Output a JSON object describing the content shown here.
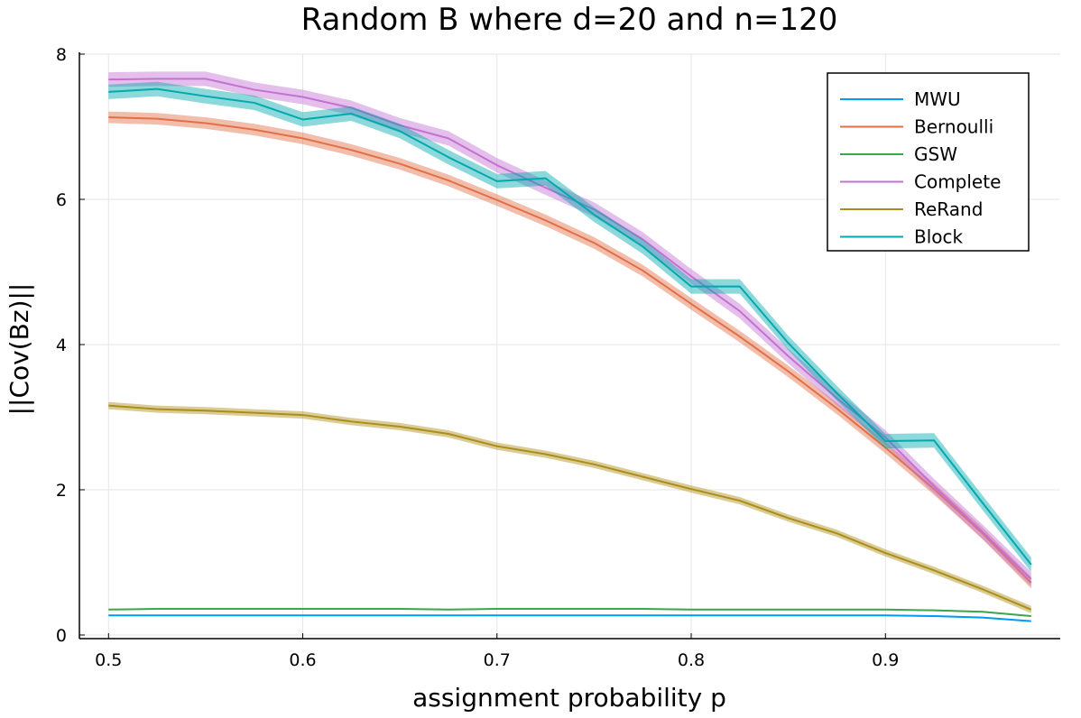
{
  "chart_data": {
    "type": "line",
    "title": "Random B where d=20 and n=120",
    "xlabel": "assignment probability p",
    "ylabel": "||Cov(Bz)||",
    "xlim": [
      0.485,
      0.99
    ],
    "ylim": [
      -0.05,
      8.0
    ],
    "xticks": [
      "0.5",
      "0.6",
      "0.7",
      "0.8",
      "0.9"
    ],
    "yticks": [
      "0",
      "2",
      "4",
      "6",
      "8"
    ],
    "grid": true,
    "legend_position": "top-right",
    "x": [
      0.5,
      0.525,
      0.55,
      0.575,
      0.6,
      0.625,
      0.65,
      0.675,
      0.7,
      0.725,
      0.75,
      0.775,
      0.8,
      0.825,
      0.85,
      0.875,
      0.9,
      0.925,
      0.95,
      0.975
    ],
    "series": [
      {
        "name": "MWU",
        "color": "#009AFA",
        "values": [
          0.27,
          0.27,
          0.27,
          0.27,
          0.27,
          0.27,
          0.27,
          0.27,
          0.27,
          0.27,
          0.27,
          0.27,
          0.27,
          0.27,
          0.27,
          0.27,
          0.27,
          0.26,
          0.24,
          0.19
        ],
        "band": 0.01
      },
      {
        "name": "Bernoulli",
        "color": "#E36F47",
        "values": [
          7.13,
          7.11,
          7.05,
          6.96,
          6.84,
          6.68,
          6.49,
          6.26,
          5.99,
          5.71,
          5.4,
          5.02,
          4.56,
          4.11,
          3.63,
          3.12,
          2.58,
          2.01,
          1.4,
          0.72
        ],
        "band": 0.08
      },
      {
        "name": "GSW",
        "color": "#3EA44E",
        "values": [
          0.35,
          0.36,
          0.36,
          0.36,
          0.36,
          0.36,
          0.36,
          0.35,
          0.36,
          0.36,
          0.36,
          0.36,
          0.35,
          0.35,
          0.35,
          0.35,
          0.35,
          0.34,
          0.32,
          0.26
        ],
        "band": 0.01
      },
      {
        "name": "Complete",
        "color": "#C371D2",
        "values": [
          7.65,
          7.66,
          7.66,
          7.51,
          7.41,
          7.26,
          7.02,
          6.84,
          6.47,
          6.16,
          5.86,
          5.45,
          4.94,
          4.46,
          3.84,
          3.26,
          2.72,
          2.05,
          1.42,
          0.77
        ],
        "band": 0.1
      },
      {
        "name": "ReRand",
        "color": "#AC8D18",
        "values": [
          3.16,
          3.11,
          3.09,
          3.06,
          3.03,
          2.94,
          2.87,
          2.77,
          2.6,
          2.49,
          2.35,
          2.18,
          2.01,
          1.85,
          1.61,
          1.4,
          1.13,
          0.89,
          0.63,
          0.35
        ],
        "band": 0.05
      },
      {
        "name": "Block",
        "color": "#00A9AD",
        "values": [
          7.48,
          7.52,
          7.42,
          7.33,
          7.1,
          7.18,
          6.94,
          6.58,
          6.25,
          6.29,
          5.79,
          5.35,
          4.8,
          4.8,
          4.02,
          3.33,
          2.67,
          2.68,
          1.82,
          0.97
        ],
        "band": 0.1
      }
    ]
  }
}
